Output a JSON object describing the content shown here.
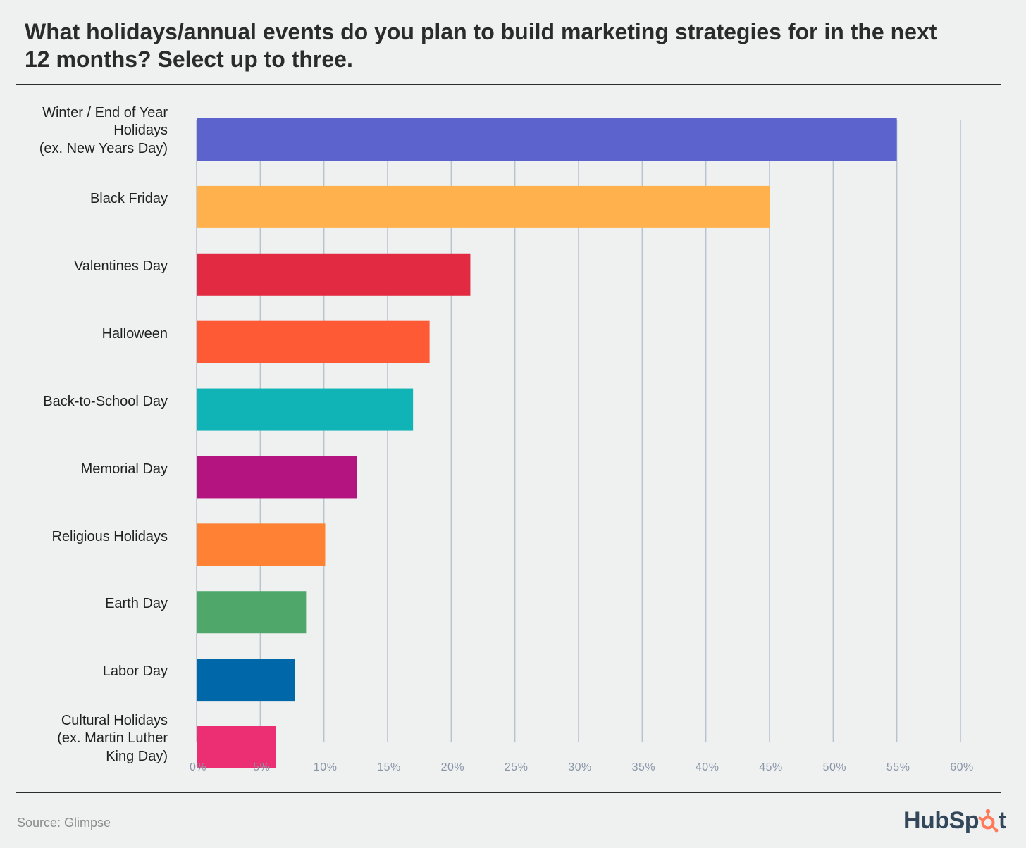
{
  "title": "What holidays/annual events do you plan to build marketing strategies for in the next 12 months? Select up to three.",
  "source": "Source: Glimpse",
  "logo": {
    "before": "HubSp",
    "after": "t",
    "icon": "sprocket-icon",
    "text_color": "#33475b",
    "accent": "#ff7a59"
  },
  "chart_data": {
    "type": "bar",
    "orientation": "horizontal",
    "title": "What holidays/annual events do you plan to build marketing strategies for in the next 12 months? Select up to three.",
    "xlabel": "",
    "ylabel": "",
    "xlim": [
      0,
      60
    ],
    "grid": true,
    "x_ticks": [
      "0%",
      "5%",
      "10%",
      "15%",
      "20%",
      "25%",
      "30%",
      "35%",
      "40%",
      "45%",
      "50%",
      "55%",
      "60%"
    ],
    "categories": [
      [
        "Winter / End of Year",
        "Holidays",
        "(ex. New Years Day)"
      ],
      [
        "Black Friday"
      ],
      [
        "Valentines Day"
      ],
      [
        "Halloween"
      ],
      [
        "Back-to-School Day"
      ],
      [
        "Memorial Day"
      ],
      [
        "Religious Holidays"
      ],
      [
        "Earth Day"
      ],
      [
        "Labor Day"
      ],
      [
        "Cultural Holidays",
        "(ex. Martin Luther",
        "King Day)"
      ]
    ],
    "values": [
      55,
      45,
      21.5,
      18.3,
      17,
      12.6,
      10.1,
      8.6,
      7.7,
      6.2
    ],
    "colors": [
      "#5c63cc",
      "#ffb14e",
      "#e22b42",
      "#ff5a36",
      "#10b4b6",
      "#b3147f",
      "#ff8133",
      "#4fa86a",
      "#0067a8",
      "#ec2e72"
    ],
    "grid_color": "#b7c3cf"
  }
}
